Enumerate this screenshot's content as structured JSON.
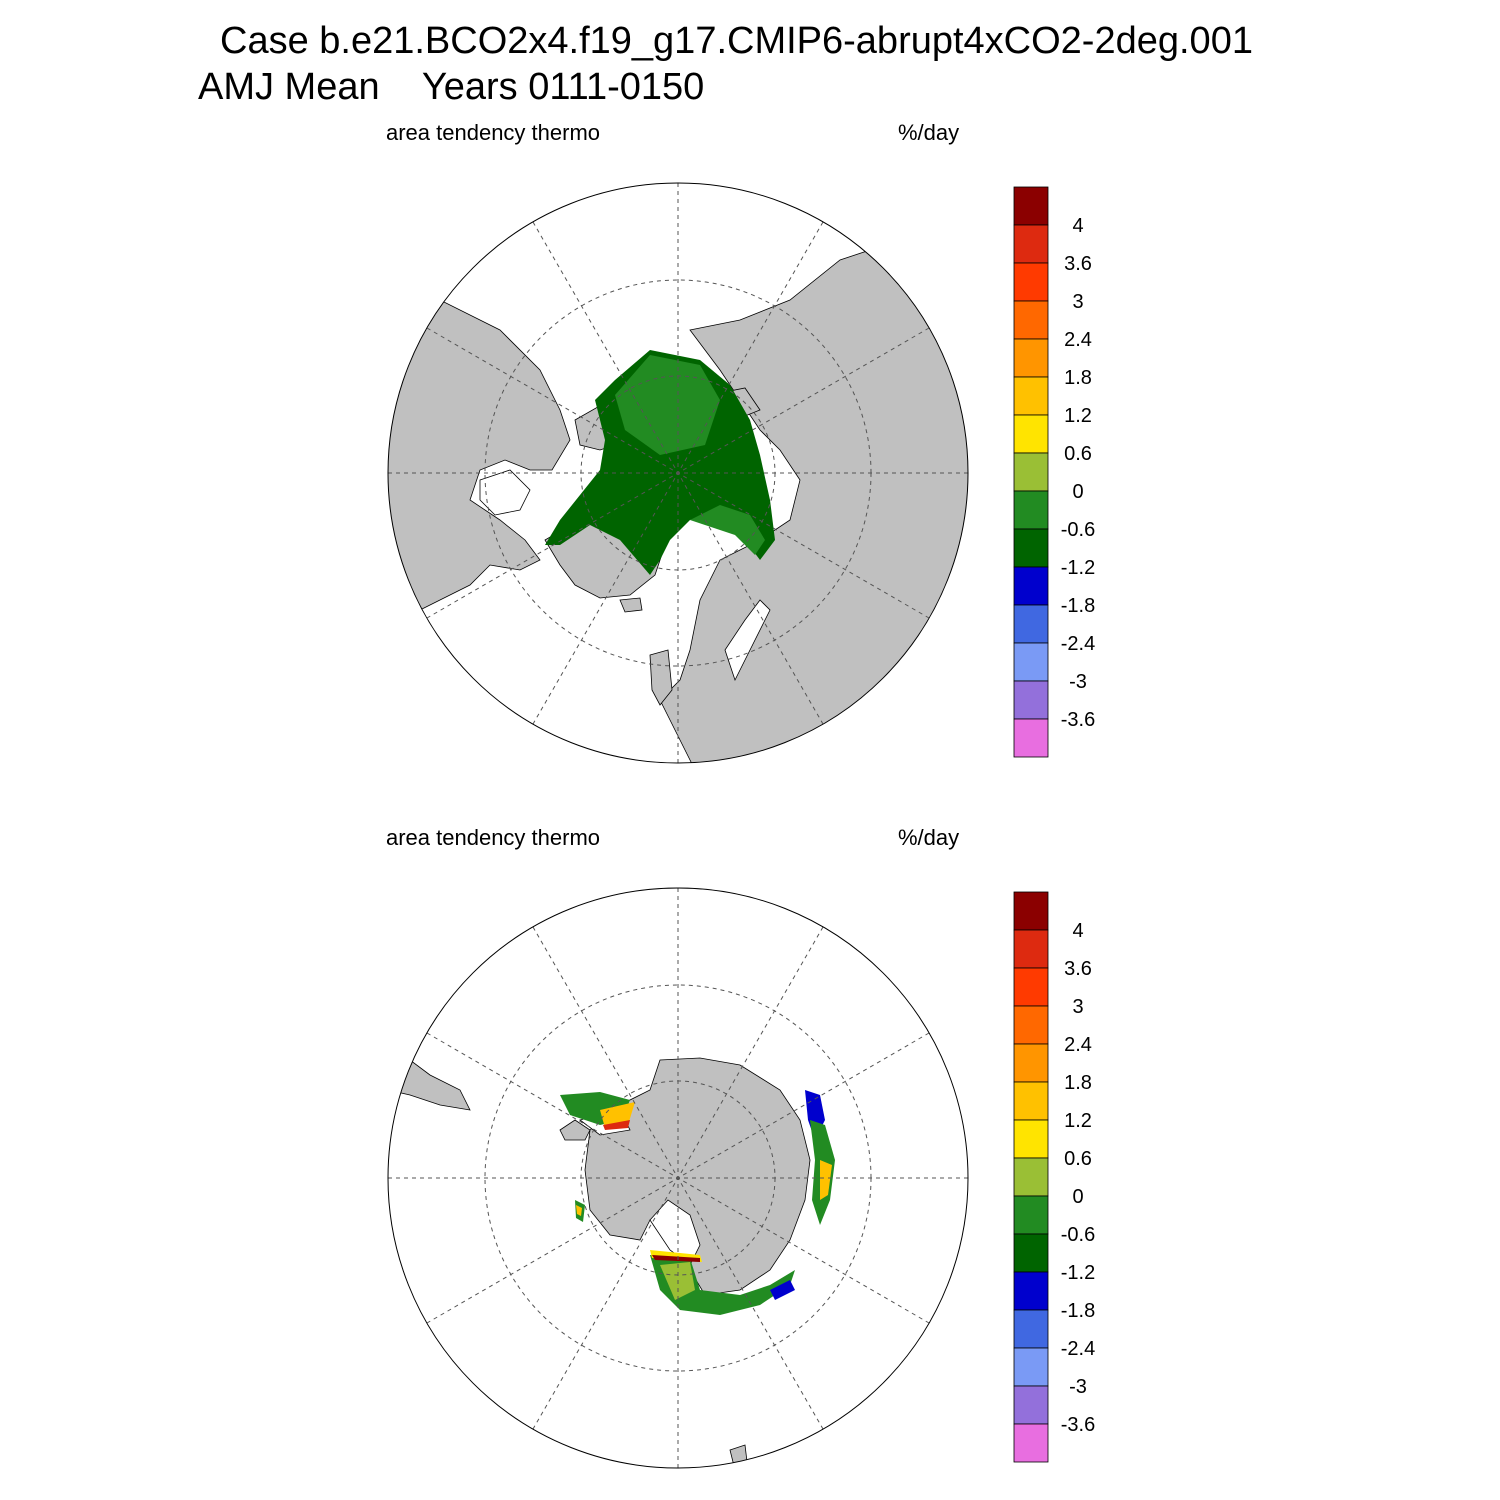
{
  "header": {
    "line1": "Case b.e21.BCO2x4.f19_g17.CMIP6-abrupt4xCO2-2deg.001",
    "line2_season": "AMJ Mean",
    "line2_years": "Years 0111-0150"
  },
  "panels": [
    {
      "id": "north",
      "left_label": "area tendency thermo",
      "right_label": "%/day"
    },
    {
      "id": "south",
      "left_label": "area tendency thermo",
      "right_label": "%/day"
    }
  ],
  "colorbar": {
    "colors": [
      "#8b0000",
      "#dd2a10",
      "#ff3a00",
      "#ff6800",
      "#ff9500",
      "#ffc100",
      "#ffe400",
      "#9abf35",
      "#228b22",
      "#006400",
      "#0000cd",
      "#4068e1",
      "#7a9af5",
      "#9370db",
      "#e86ee0"
    ],
    "tick_labels": [
      "4",
      "3.6",
      "3",
      "2.4",
      "1.8",
      "1.2",
      "0.6",
      "0",
      "-0.6",
      "-1.2",
      "-1.8",
      "-2.4",
      "-3",
      "-3.6"
    ]
  },
  "map_colors": {
    "land": "#c0c0c0",
    "ocean": "#ffffff",
    "graticule": "#555555"
  }
}
